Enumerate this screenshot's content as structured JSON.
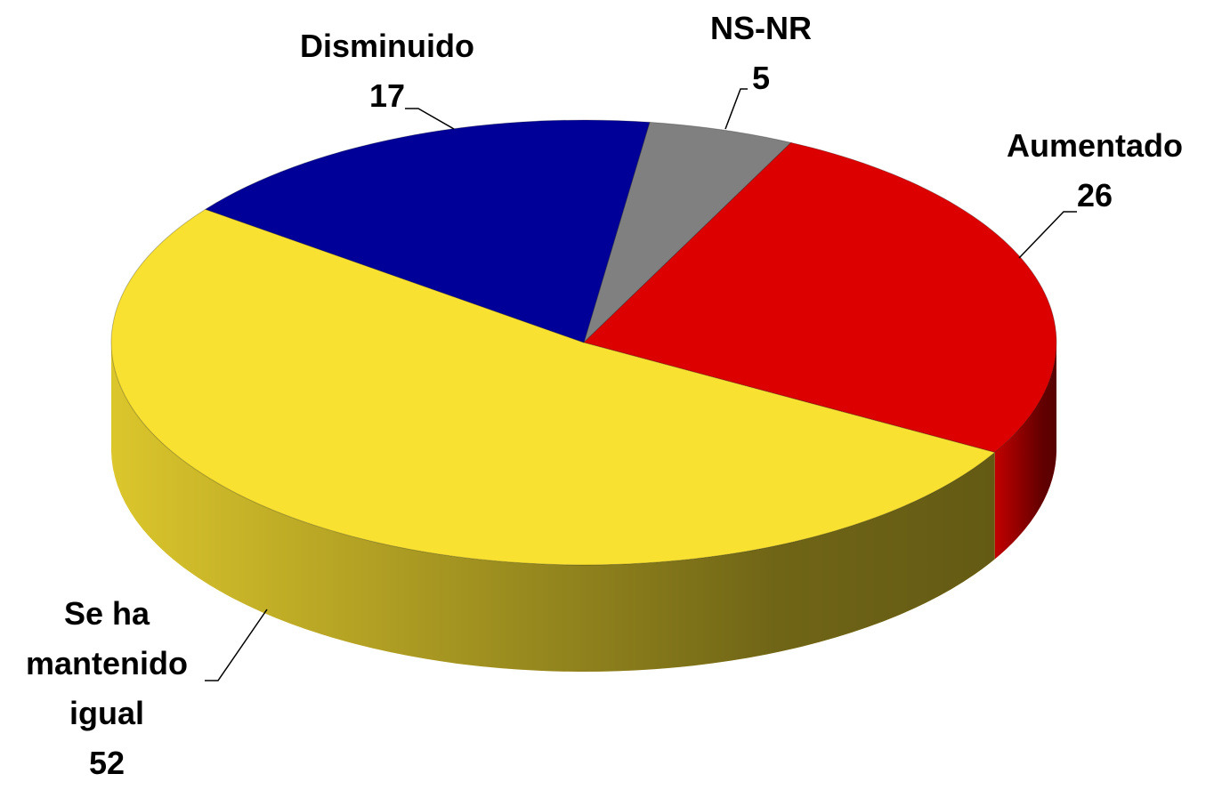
{
  "chart_data": {
    "type": "pie3d",
    "categories": [
      "NS-NR",
      "Aumentado",
      "Se ha mantenido igual",
      "Disminuido"
    ],
    "values": [
      5,
      26,
      52,
      17
    ],
    "colors": [
      "#808080",
      "#dd0000",
      "#f9e132",
      "#000099"
    ]
  }
}
